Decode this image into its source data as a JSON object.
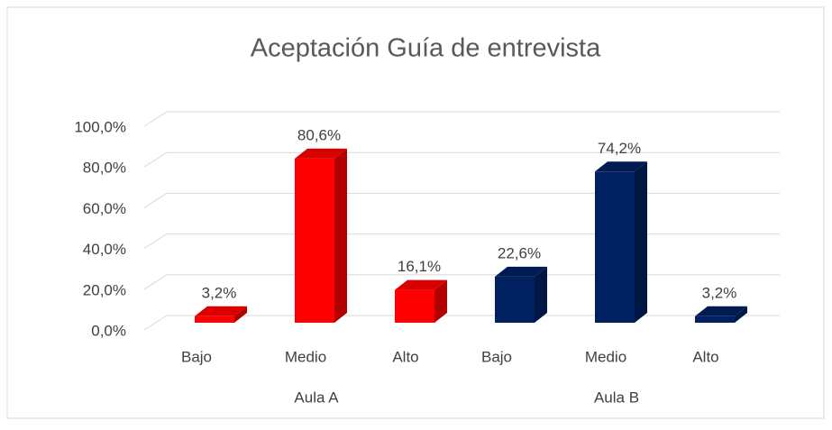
{
  "chart_data": {
    "type": "bar3d",
    "title": "Aceptación Guía de entrevista",
    "series": [
      {
        "name": "Aula A",
        "color": "#ff0000",
        "categories": [
          "Bajo",
          "Medio",
          "Alto"
        ],
        "values": [
          3.2,
          80.6,
          16.1
        ],
        "value_labels": [
          "3,2%",
          "80,6%",
          "16,1%"
        ]
      },
      {
        "name": "Aula B",
        "color": "#002060",
        "categories": [
          "Bajo",
          "Medio",
          "Alto"
        ],
        "values": [
          22.6,
          74.2,
          3.2
        ],
        "value_labels": [
          "22,6%",
          "74,2%",
          "3,2%"
        ]
      }
    ],
    "ylim": [
      0,
      100
    ],
    "yticks": [
      {
        "value": 0,
        "label": "0,0%"
      },
      {
        "value": 20,
        "label": "20,0%"
      },
      {
        "value": 40,
        "label": "40,0%"
      },
      {
        "value": 60,
        "label": "60,0%"
      },
      {
        "value": 80,
        "label": "80,0%"
      },
      {
        "value": 100,
        "label": "100,0%"
      }
    ],
    "grid": true
  }
}
